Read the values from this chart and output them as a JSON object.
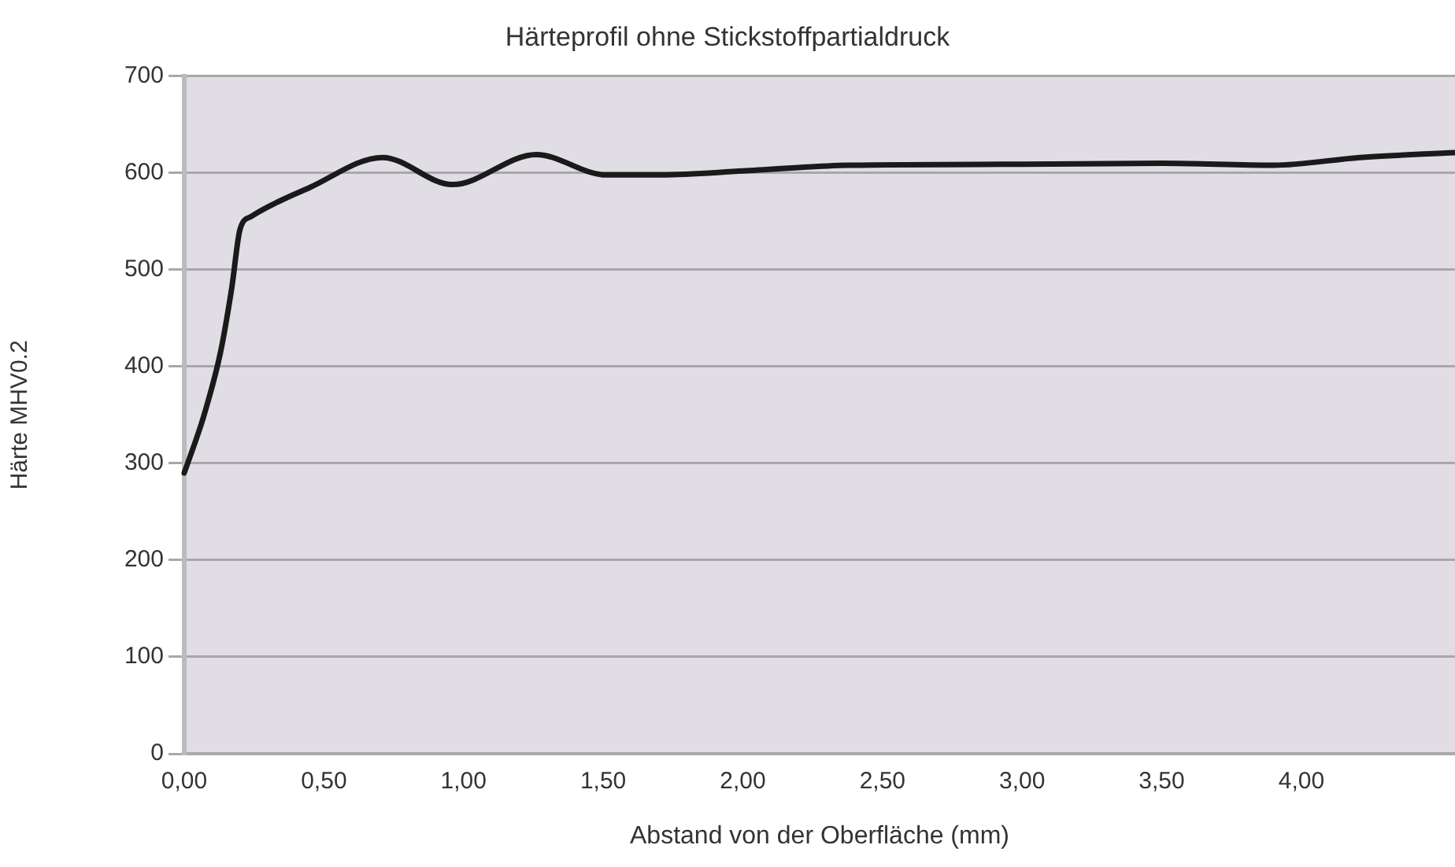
{
  "chart_data": {
    "type": "line",
    "title": "Härteprofil ohne Stickstoffpartialdruck",
    "xlabel": "Abstand von der Oberfläche (mm)",
    "ylabel": "Härte MHV0.2",
    "x": [
      0,
      0.07,
      0.13,
      0.17,
      0.2,
      0.24,
      0.45,
      0.71,
      0.96,
      1.26,
      1.51,
      1.71,
      2.0,
      2.38,
      3.0,
      3.5,
      3.9,
      4.21,
      4.55
    ],
    "series": [
      {
        "color": "#1a1a1a",
        "values": [
          290,
          349,
          415,
          481,
          542,
          555,
          585,
          616,
          588,
          619,
          598,
          598,
          602,
          608,
          609,
          610,
          608,
          616,
          621
        ]
      }
    ],
    "xlim": [
      0,
      4.55
    ],
    "ylim": [
      0,
      700
    ],
    "xticks": [
      {
        "value": 0,
        "label": "0,00"
      },
      {
        "value": 0.5,
        "label": "0,50"
      },
      {
        "value": 1,
        "label": "1,00"
      },
      {
        "value": 1.5,
        "label": "1,50"
      },
      {
        "value": 2,
        "label": "2,00"
      },
      {
        "value": 2.5,
        "label": "2,50"
      },
      {
        "value": 3,
        "label": "3,00"
      },
      {
        "value": 3.5,
        "label": "3,50"
      },
      {
        "value": 4,
        "label": "4,00"
      }
    ],
    "yticks": [
      0,
      100,
      200,
      300,
      400,
      500,
      600,
      700
    ],
    "grid": "y",
    "legend": false,
    "marker": "none",
    "line_style": "solid"
  }
}
